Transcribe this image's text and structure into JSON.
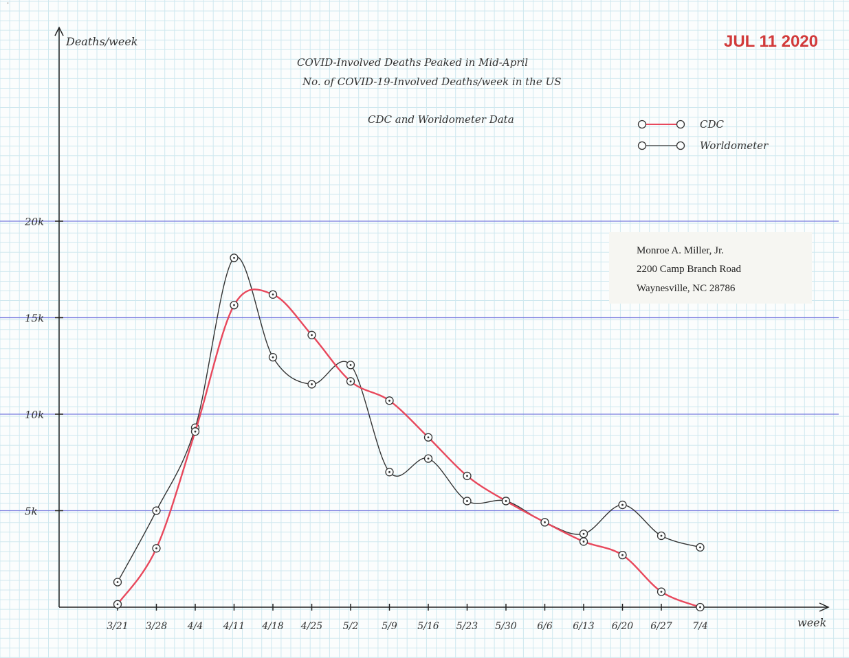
{
  "stamp": {
    "text": "JUL 11 2020",
    "color": "#d23a3a"
  },
  "address": {
    "name": "Monroe A. Miller, Jr.",
    "street": "2200 Camp Branch Road",
    "city": "Waynesville, NC 28786"
  },
  "colors": {
    "grid": "#cfe8ef",
    "major_grid": "#7a7ee0",
    "cdc": "#e8485c",
    "worldometer": "#333333"
  },
  "chart_data": {
    "type": "line",
    "title": "COVID-Involved Deaths Peaked in Mid-April",
    "subtitle": "No. of COVID-19-Involved Deaths/week in the US",
    "source_note": "CDC and Worldometer Data",
    "ylabel": "Deaths/week",
    "xlabel": "week",
    "categories": [
      "3/21",
      "3/28",
      "4/4",
      "4/11",
      "4/18",
      "4/25",
      "5/2",
      "5/9",
      "5/16",
      "5/23",
      "5/30",
      "6/6",
      "6/13",
      "6/20",
      "6/27",
      "7/4"
    ],
    "ylim": [
      0,
      20000
    ],
    "yticks": [
      {
        "value": 5000,
        "label": "5k"
      },
      {
        "value": 10000,
        "label": "10k"
      },
      {
        "value": 15000,
        "label": "15k"
      },
      {
        "value": 20000,
        "label": "20k"
      }
    ],
    "legend_position": "top-right",
    "series": [
      {
        "name": "CDC",
        "color": "#e8485c",
        "values": [
          150,
          3050,
          9100,
          15650,
          16200,
          14100,
          11700,
          10700,
          8800,
          6800,
          5500,
          4400,
          3400,
          2700,
          800,
          0
        ]
      },
      {
        "name": "Worldometer",
        "color": "#333333",
        "values": [
          1300,
          5000,
          9300,
          18100,
          12950,
          11550,
          12550,
          7000,
          7700,
          5500,
          5500,
          4400,
          3800,
          5300,
          3700,
          3100
        ]
      }
    ]
  }
}
